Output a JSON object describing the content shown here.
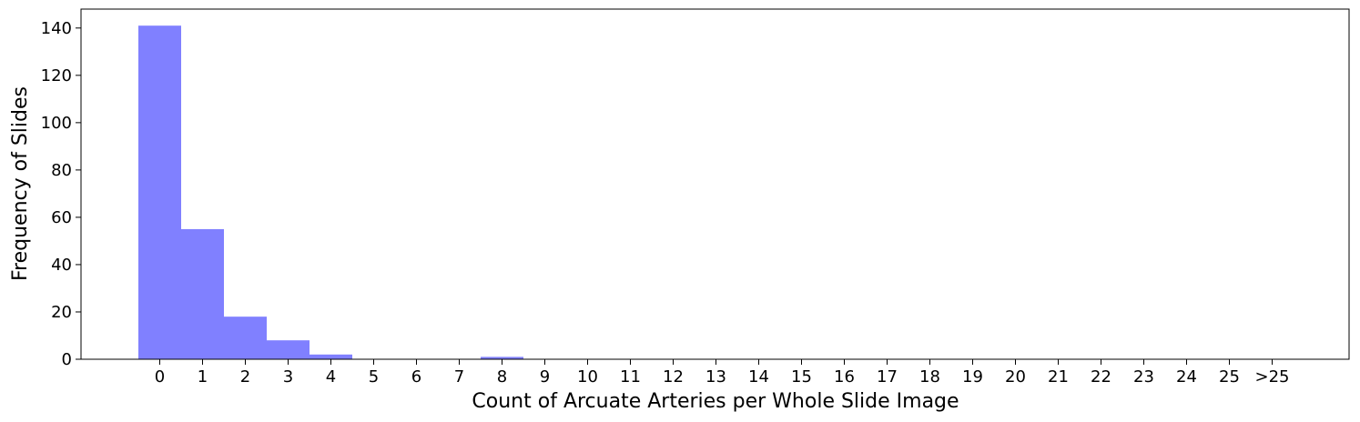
{
  "chart_data": {
    "type": "bar",
    "title": "",
    "xlabel": "Count of Arcuate Arteries per Whole Slide Image",
    "ylabel": "Frequency of Slides",
    "categories": [
      "0",
      "1",
      "2",
      "3",
      "4",
      "5",
      "6",
      "7",
      "8",
      "9",
      "10",
      "11",
      "12",
      "13",
      "14",
      "15",
      "16",
      "17",
      "18",
      "19",
      "20",
      "21",
      "22",
      "23",
      "24",
      "25",
      ">25"
    ],
    "values": [
      141,
      55,
      18,
      8,
      2,
      0,
      0,
      0,
      1,
      0,
      0,
      0,
      0,
      0,
      0,
      0,
      0,
      0,
      0,
      0,
      0,
      0,
      0,
      0,
      0,
      0,
      0
    ],
    "yticks": [
      0,
      20,
      40,
      60,
      80,
      100,
      120,
      140
    ],
    "ylim": [
      0,
      148
    ],
    "bar_color": "#8080ff",
    "grid": false,
    "legend": false
  }
}
